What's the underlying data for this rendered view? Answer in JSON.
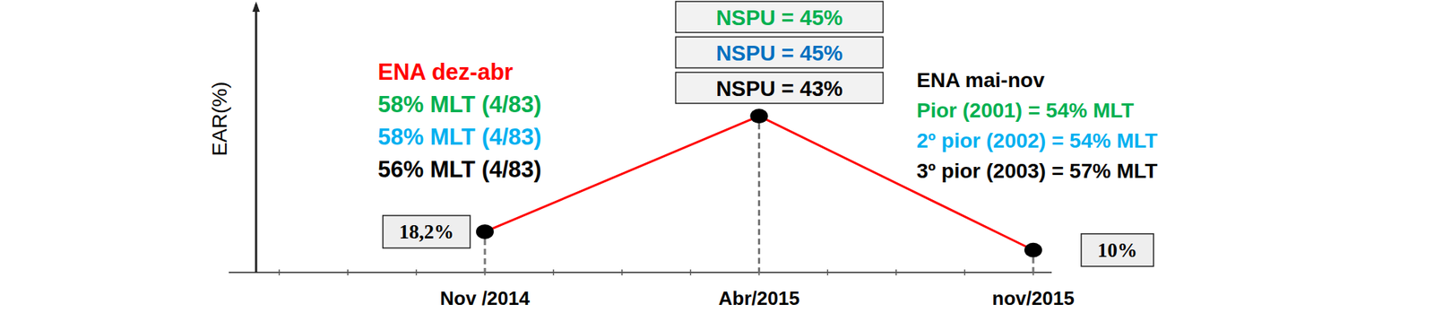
{
  "chart_data": {
    "type": "line",
    "y_label": "EAR(%)",
    "categories": [
      "Nov /2014",
      "Abr/2015",
      "nov/2015"
    ],
    "values": [
      18.2,
      70,
      10
    ],
    "value_labels": [
      "18,2%",
      null,
      "10%"
    ],
    "color": "#ff0000",
    "marker": "circle",
    "data_labels": true,
    "ylim": [
      0,
      120
    ],
    "yticks": [],
    "tick_labels": "x",
    "grid": false,
    "annotations": [
      {
        "lines": [
          {
            "text": "ENA dez-abr",
            "color": "#ff0000"
          },
          {
            "text": "58% MLT (4/83)",
            "color": "#00b050"
          },
          {
            "text": "58% MLT (4/83)",
            "color": "#00b0f0"
          },
          {
            "text": "56% MLT (4/83)",
            "color": "#000000"
          }
        ]
      },
      {
        "lines": [
          {
            "text": "NSPU = 45%",
            "color": "#00b050"
          },
          {
            "text": "NSPU = 45%",
            "color": "#0070c0"
          },
          {
            "text": "NSPU = 43%",
            "color": "#000000"
          }
        ]
      },
      {
        "lines": [
          {
            "text": "ENA mai-nov",
            "color": "#000000"
          },
          {
            "text": "Pior (2001) = 54% MLT",
            "color": "#00b050"
          },
          {
            "text": "2º pior (2002) = 54% MLT",
            "color": "#00b0f0"
          },
          {
            "text": "3º pior (2003) = 57% MLT",
            "color": "#000000"
          }
        ]
      }
    ]
  }
}
